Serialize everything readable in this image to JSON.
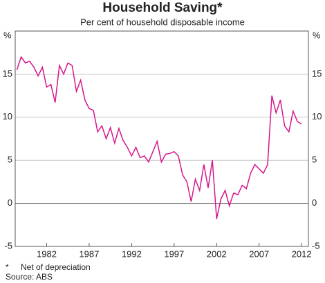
{
  "chart_data": {
    "type": "line",
    "title": "Household Saving*",
    "subtitle": "Per cent of household disposable income",
    "y_unit": "%",
    "x": [
      1978.5,
      1979,
      1979.5,
      1980,
      1980.5,
      1981,
      1981.5,
      1982,
      1982.5,
      1983,
      1983.5,
      1984,
      1984.5,
      1985,
      1985.5,
      1986,
      1986.5,
      1987,
      1987.5,
      1988,
      1988.5,
      1989,
      1989.5,
      1990,
      1990.5,
      1991,
      1991.5,
      1992,
      1992.5,
      1993,
      1993.5,
      1994,
      1994.5,
      1995,
      1995.5,
      1996,
      1996.5,
      1997,
      1997.5,
      1998,
      1998.5,
      1999,
      1999.5,
      2000,
      2000.5,
      2001,
      2001.5,
      2002,
      2002.5,
      2003,
      2003.5,
      2004,
      2004.5,
      2005,
      2005.5,
      2006,
      2006.5,
      2007,
      2007.5,
      2008,
      2008.5,
      2009,
      2009.5,
      2010,
      2010.5,
      2011,
      2011.5,
      2012
    ],
    "values": [
      15.5,
      17,
      16.3,
      16.5,
      15.8,
      14.8,
      15.8,
      13.5,
      13.8,
      11.7,
      16,
      15,
      16.3,
      16,
      13,
      14.3,
      12,
      11,
      10.8,
      8.3,
      9,
      7.5,
      8.8,
      7,
      8.7,
      7.3,
      6.5,
      5.5,
      6.5,
      5.3,
      5.5,
      4.8,
      6,
      7.2,
      4.8,
      5.7,
      5.8,
      6,
      5.5,
      3.3,
      2.5,
      0.2,
      2.8,
      1.5,
      4.5,
      1.8,
      5,
      -1.8,
      0.5,
      1.5,
      -0.3,
      1.2,
      1,
      2.1,
      1.7,
      3.5,
      4.5,
      4,
      3.5,
      4.5,
      12.5,
      10.5,
      12,
      9,
      8.3,
      10.7,
      9.5,
      9.2
    ],
    "color": "#d6168c",
    "xlim": [
      1978.3,
      2012.8
    ],
    "xticks": [
      1982,
      1987,
      1992,
      1997,
      2002,
      2007,
      2012
    ],
    "ylim": [
      -5,
      20
    ],
    "yticks": [
      -5,
      0,
      5,
      10,
      15
    ],
    "grid": true,
    "footnote": {
      "marker": "*",
      "text": "Net of depreciation"
    },
    "source": "Source: ABS"
  }
}
